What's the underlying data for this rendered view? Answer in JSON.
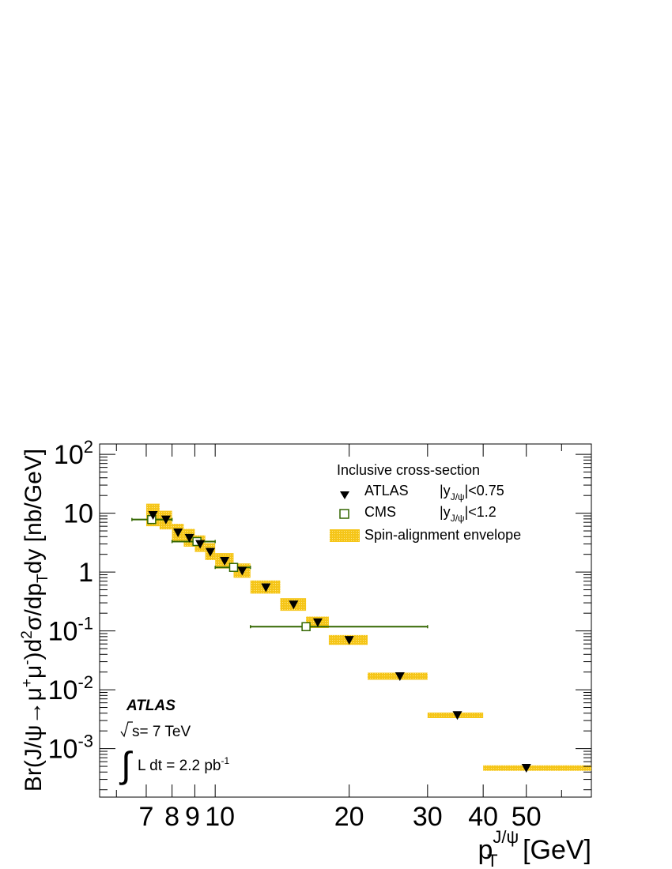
{
  "chart_data": {
    "type": "scatter",
    "xscale": "log",
    "yscale": "log",
    "xlim": [
      5.5,
      70
    ],
    "ylim": [
      0.00015,
      150
    ],
    "x_ticks_labeled": [
      {
        "value": 7,
        "label": "7"
      },
      {
        "value": 8,
        "label": "8"
      },
      {
        "value": 9,
        "label": "9"
      },
      {
        "value": 10,
        "label": "10"
      },
      {
        "value": 20,
        "label": "20"
      },
      {
        "value": 30,
        "label": "30"
      },
      {
        "value": 40,
        "label": "40"
      },
      {
        "value": 50,
        "label": "50"
      }
    ],
    "y_ticks_labeled": [
      {
        "value": 100,
        "mantissa": "10",
        "exponent": "2"
      },
      {
        "value": 10,
        "mantissa": "10",
        "exponent": ""
      },
      {
        "value": 1,
        "mantissa": "1",
        "exponent": ""
      },
      {
        "value": 0.1,
        "mantissa": "10",
        "exponent": "-1"
      },
      {
        "value": 0.01,
        "mantissa": "10",
        "exponent": "-2"
      },
      {
        "value": 0.001,
        "mantissa": "10",
        "exponent": "-3"
      }
    ],
    "xlabel": {
      "base": "p",
      "sub": "T",
      "sup": "J/ψ",
      "rest": " [GeV]"
    },
    "ylabel": "Br(J/ψ→μ⁺μ⁻)d²σ/dp T dy [nb/GeV]",
    "ylabel_parts": {
      "p1": "Br(J/ψ→μ",
      "sup1": "+",
      "p2": "μ",
      "sup2": "-",
      "p3": ")d",
      "sup3": "2",
      "p4": "σ/dp",
      "sub1": "T",
      "p5": "dy [nb/GeV]"
    },
    "legend": {
      "title": "Inclusive cross-section",
      "entries": [
        {
          "label": "ATLAS",
          "range_prefix": "|y",
          "range_sub": "J/ψ",
          "range_suffix": "|<0.75",
          "marker": "down-triangle"
        },
        {
          "label": "CMS",
          "range_prefix": "|y",
          "range_sub": "J/ψ",
          "range_suffix": "|<1.2",
          "marker": "open-square"
        },
        {
          "label": "Spin-alignment envelope",
          "marker": "band"
        }
      ],
      "position": "top-right"
    },
    "annotations": {
      "experiment": "ATLAS",
      "energy": "s= 7 TeV",
      "lumi_text": "L dt = 2.2 pb",
      "lumi_sup": "-1"
    },
    "series": [
      {
        "name": "ATLAS",
        "marker": "down-triangle",
        "color": "#000000",
        "points": [
          {
            "x": 7.25,
            "y": 9.3,
            "xlo": 7.0,
            "xhi": 7.5
          },
          {
            "x": 7.75,
            "y": 7.8,
            "xlo": 7.5,
            "xhi": 8.0
          },
          {
            "x": 8.25,
            "y": 4.7,
            "xlo": 8.0,
            "xhi": 8.5
          },
          {
            "x": 8.75,
            "y": 3.8,
            "xlo": 8.5,
            "xhi": 9.0
          },
          {
            "x": 9.25,
            "y": 3.0,
            "xlo": 9.0,
            "xhi": 9.5
          },
          {
            "x": 9.75,
            "y": 2.2,
            "xlo": 9.5,
            "xhi": 10.0
          },
          {
            "x": 10.5,
            "y": 1.55,
            "xlo": 10.0,
            "xhi": 11.0
          },
          {
            "x": 11.5,
            "y": 1.05,
            "xlo": 11.0,
            "xhi": 12.0
          },
          {
            "x": 13.0,
            "y": 0.55,
            "xlo": 12.0,
            "xhi": 14.0
          },
          {
            "x": 15.0,
            "y": 0.28,
            "xlo": 14.0,
            "xhi": 16.0
          },
          {
            "x": 17.0,
            "y": 0.14,
            "xlo": 16.0,
            "xhi": 18.0
          },
          {
            "x": 20.0,
            "y": 0.07,
            "xlo": 18.0,
            "xhi": 22.0
          },
          {
            "x": 26.0,
            "y": 0.017,
            "xlo": 22.0,
            "xhi": 30.0
          },
          {
            "x": 35.0,
            "y": 0.0037,
            "xlo": 30.0,
            "xhi": 40.0
          },
          {
            "x": 50.0,
            "y": 0.00047,
            "xlo": 40.0,
            "xhi": 70.0
          }
        ]
      },
      {
        "name": "CMS",
        "marker": "open-square",
        "color": "#336600",
        "points": [
          {
            "x": 7.2,
            "y": 7.8,
            "xlo": 6.5,
            "xhi": 8.0
          },
          {
            "x": 9.1,
            "y": 3.3,
            "xlo": 8.0,
            "xhi": 10.0
          },
          {
            "x": 11.0,
            "y": 1.2,
            "xlo": 10.0,
            "xhi": 12.0
          },
          {
            "x": 16.0,
            "y": 0.118,
            "xlo": 12.0,
            "xhi": 30.0
          }
        ]
      },
      {
        "name": "Spin-alignment envelope",
        "type": "band",
        "color": "#f5c518",
        "boxes": [
          {
            "xlo": 7.0,
            "xhi": 7.5,
            "ylo": 6.0,
            "yhi": 14.5
          },
          {
            "xlo": 7.5,
            "xhi": 8.0,
            "ylo": 5.3,
            "yhi": 11.0
          },
          {
            "xlo": 8.0,
            "xhi": 8.5,
            "ylo": 3.3,
            "yhi": 6.6
          },
          {
            "xlo": 8.5,
            "xhi": 9.0,
            "ylo": 2.7,
            "yhi": 5.4
          },
          {
            "xlo": 9.0,
            "xhi": 9.5,
            "ylo": 2.2,
            "yhi": 4.2
          },
          {
            "xlo": 9.5,
            "xhi": 10.0,
            "ylo": 1.6,
            "yhi": 3.1
          },
          {
            "xlo": 10.0,
            "xhi": 11.0,
            "ylo": 1.15,
            "yhi": 2.1
          },
          {
            "xlo": 11.0,
            "xhi": 12.0,
            "ylo": 0.8,
            "yhi": 1.4
          },
          {
            "xlo": 12.0,
            "xhi": 14.0,
            "ylo": 0.43,
            "yhi": 0.72
          },
          {
            "xlo": 14.0,
            "xhi": 16.0,
            "ylo": 0.22,
            "yhi": 0.36
          },
          {
            "xlo": 16.0,
            "xhi": 18.0,
            "ylo": 0.112,
            "yhi": 0.175
          },
          {
            "xlo": 18.0,
            "xhi": 22.0,
            "ylo": 0.058,
            "yhi": 0.085
          },
          {
            "xlo": 22.0,
            "xhi": 30.0,
            "ylo": 0.0148,
            "yhi": 0.0195
          },
          {
            "xlo": 30.0,
            "xhi": 40.0,
            "ylo": 0.0033,
            "yhi": 0.0041
          },
          {
            "xlo": 40.0,
            "xhi": 70.0,
            "ylo": 0.00042,
            "yhi": 0.00052
          }
        ]
      }
    ],
    "grid": false
  }
}
